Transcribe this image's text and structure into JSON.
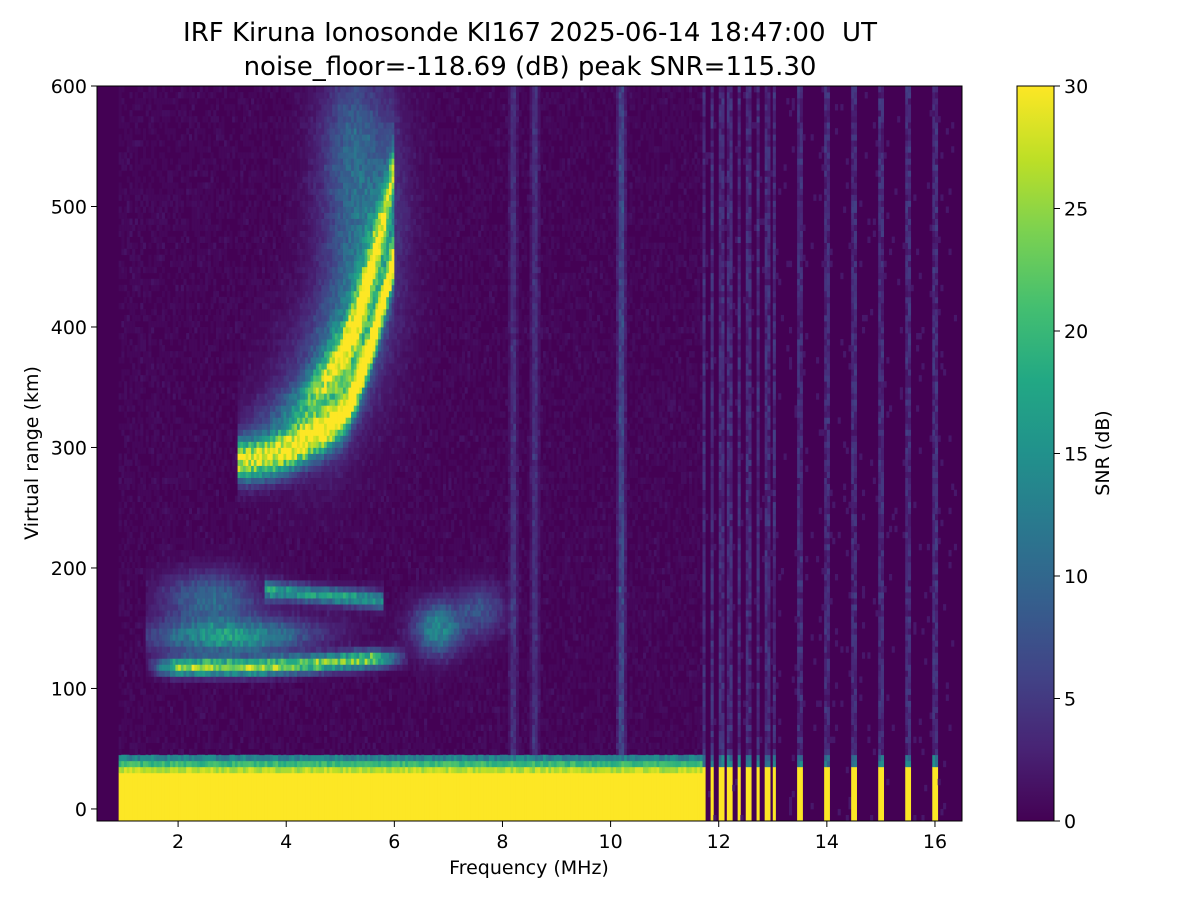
{
  "chart_data": {
    "type": "heatmap",
    "title": "IRF Kiruna Ionosonde KI167 2025-06-14 18:47:00  UT",
    "subtitle": "noise_floor=-118.69 (dB) peak SNR=115.30",
    "xlabel": "Frequency (MHz)",
    "ylabel": "Virtual range (km)",
    "xlim": [
      0.5,
      16.5
    ],
    "ylim": [
      -10,
      600
    ],
    "x_ticks": [
      2,
      4,
      6,
      8,
      10,
      12,
      14,
      16
    ],
    "y_ticks": [
      0,
      100,
      200,
      300,
      400,
      500,
      600
    ],
    "colorbar": {
      "label": "SNR (dB)",
      "range": [
        0,
        30
      ],
      "ticks": [
        0,
        5,
        10,
        15,
        20,
        25,
        30
      ],
      "colormap": "viridis"
    },
    "grid": false,
    "sweep_range_mhz": [
      0.9,
      16.4
    ],
    "sparse_sweep_start_mhz": 11.7,
    "ground_echo_top_km": 45,
    "features": [
      {
        "freq_mhz": [
          1.4,
          6.2
        ],
        "range_km": [
          110,
          215
        ],
        "snr_db": 24
      },
      {
        "freq_mhz": [
          3.8,
          5.5
        ],
        "range_km": [
          165,
          195
        ],
        "snr_db": 22
      },
      {
        "freq_mhz": [
          3.1,
          6.0
        ],
        "range_km": [
          255,
          590
        ],
        "snr_db": 28
      }
    ],
    "interference_lines_mhz": [
      8.2,
      8.6,
      10.2
    ]
  }
}
